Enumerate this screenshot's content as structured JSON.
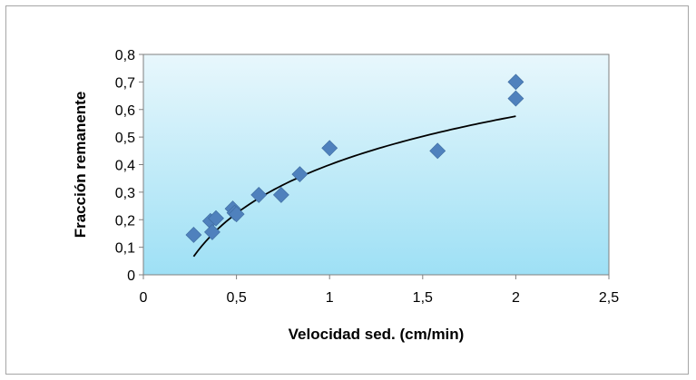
{
  "chart_data": {
    "type": "scatter",
    "xlabel": "Velocidad sed. (cm/min)",
    "ylabel": "Fracción  remanente",
    "xlim": [
      0,
      2.5
    ],
    "ylim": [
      0,
      0.8
    ],
    "x_ticks": [
      0,
      0.5,
      1,
      1.5,
      2,
      2.5
    ],
    "y_ticks": [
      0,
      0.1,
      0.2,
      0.3,
      0.4,
      0.5,
      0.6,
      0.7,
      0.8
    ],
    "x_tick_labels": [
      "0",
      "0,5",
      "1",
      "1,5",
      "2",
      "2,5"
    ],
    "y_tick_labels": [
      "0",
      "0,1",
      "0,2",
      "0,3",
      "0,4",
      "0,5",
      "0,6",
      "0,7",
      "0,8"
    ],
    "grid": false,
    "legend": "none",
    "series": [
      {
        "marker": "diamond",
        "color": "#4f81bd",
        "points": [
          {
            "x": 0.27,
            "y": 0.145
          },
          {
            "x": 0.36,
            "y": 0.195
          },
          {
            "x": 0.37,
            "y": 0.155
          },
          {
            "x": 0.39,
            "y": 0.205
          },
          {
            "x": 0.48,
            "y": 0.24
          },
          {
            "x": 0.49,
            "y": 0.225
          },
          {
            "x": 0.5,
            "y": 0.22
          },
          {
            "x": 0.62,
            "y": 0.29
          },
          {
            "x": 0.74,
            "y": 0.29
          },
          {
            "x": 0.84,
            "y": 0.365
          },
          {
            "x": 1.0,
            "y": 0.46
          },
          {
            "x": 1.58,
            "y": 0.45
          },
          {
            "x": 2.0,
            "y": 0.7
          },
          {
            "x": 2.0,
            "y": 0.64
          }
        ]
      }
    ],
    "trendline": {
      "type": "logarithmic",
      "color": "#000000",
      "x_range": [
        0.27,
        2.0
      ],
      "a": 0.3994,
      "b": 0.2543
    },
    "plot_gradient": [
      "#e8f7fc",
      "#9ee0f5"
    ]
  }
}
